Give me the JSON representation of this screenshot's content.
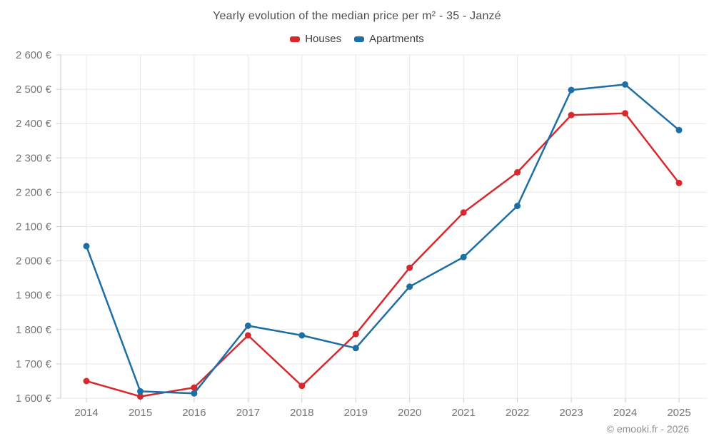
{
  "title": "Yearly evolution of the median price per m² - 35 - Janzé",
  "legend": {
    "items": [
      {
        "id": "houses",
        "label": "Houses",
        "color": "#d7282e"
      },
      {
        "id": "apartments",
        "label": "Apartments",
        "color": "#1c6ea4"
      }
    ]
  },
  "attribution": "© emooki.fr - 2026",
  "colors": {
    "houses": "#d7282e",
    "apartments": "#1c6ea4",
    "grid": "#e8e8e8",
    "axis": "#c9c9c9",
    "tick": "#cccccc",
    "tick_text": "#757575",
    "title_text": "#4d4d4d",
    "legend_text": "#3d3d3d",
    "attribution_text": "#8c8c8c"
  },
  "chart_data": {
    "type": "line",
    "title": "Yearly evolution of the median price per m² - 35 - Janzé",
    "categories": [
      "2014",
      "2015",
      "2016",
      "2017",
      "2018",
      "2019",
      "2020",
      "2021",
      "2022",
      "2023",
      "2024",
      "2025"
    ],
    "series": [
      {
        "name": "Houses",
        "color": "#d7282e",
        "values": [
          1650,
          1605,
          1631,
          1783,
          1636,
          1787,
          1980,
          2141,
          2258,
          2425,
          2430,
          2227
        ]
      },
      {
        "name": "Apartments",
        "color": "#1c6ea4",
        "values": [
          2043,
          1620,
          1614,
          1811,
          1783,
          1746,
          1925,
          2011,
          2160,
          2498,
          2514,
          2381
        ]
      }
    ],
    "xlabel": "",
    "ylabel": "",
    "ylim": [
      1600,
      2600
    ],
    "yticks": [
      1600,
      1700,
      1800,
      1900,
      2000,
      2100,
      2200,
      2300,
      2400,
      2500,
      2600
    ],
    "ytick_labels": [
      "1 600 €",
      "1 700 €",
      "1 800 €",
      "1 900 €",
      "2 000 €",
      "2 100 €",
      "2 200 €",
      "2 300 €",
      "2 400 €",
      "2 500 €",
      "2 600 €"
    ],
    "grid": true,
    "legend_position": "top",
    "marker": "circle"
  }
}
